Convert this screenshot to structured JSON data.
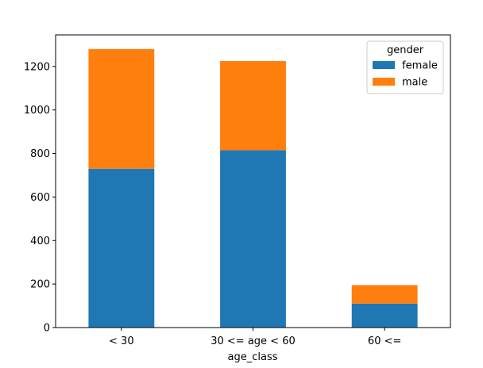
{
  "chart_data": {
    "type": "bar",
    "stacked": true,
    "categories": [
      "< 30",
      "30 <= age < 60",
      "60 <="
    ],
    "series": [
      {
        "name": "female",
        "values": [
          730,
          815,
          110
        ],
        "color": "#1f77b4"
      },
      {
        "name": "male",
        "values": [
          550,
          410,
          85
        ],
        "color": "#ff7f0e"
      }
    ],
    "xlabel": "age_class",
    "ylabel": "",
    "ylim": [
      0,
      1345
    ],
    "yticks": [
      0,
      200,
      400,
      600,
      800,
      1000,
      1200
    ],
    "legend": {
      "title": "gender",
      "placement": "top-right"
    },
    "grid": false
  }
}
